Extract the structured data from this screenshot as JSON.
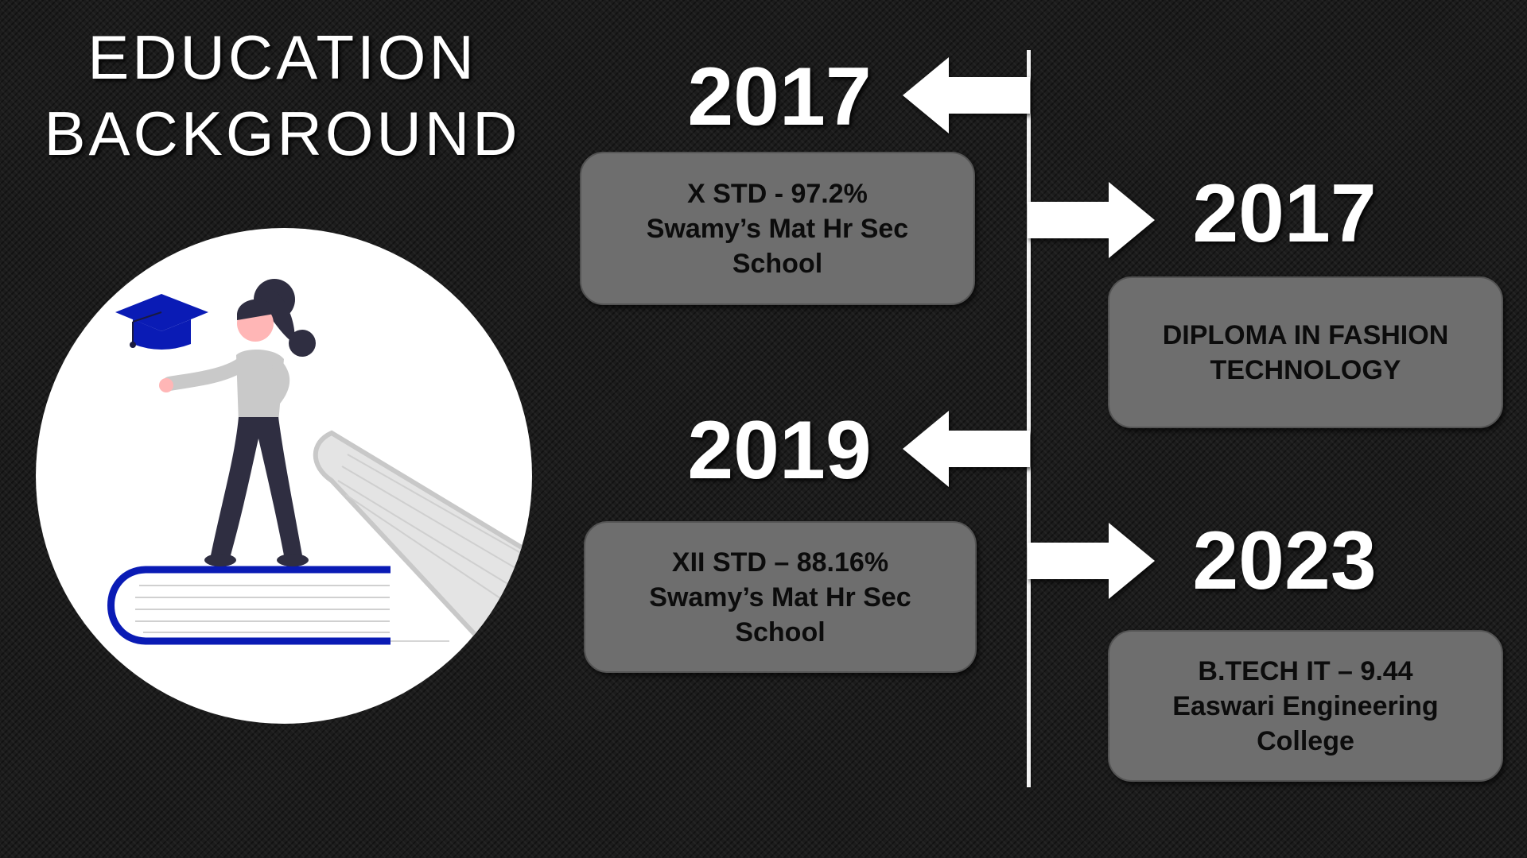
{
  "title": {
    "line1": "EDUCATION",
    "line2": "BACKGROUND"
  },
  "illustration": {
    "description_icons": [
      "graduation-cap-icon",
      "student-figure",
      "book-stack"
    ],
    "accent_color": "#0a1bb5"
  },
  "timeline": {
    "line_color": "#f4f4f4",
    "entries": [
      {
        "year": "2017",
        "side": "left",
        "lines": [
          "X STD - 97.2%",
          "Swamy’s Mat Hr Sec",
          "School"
        ]
      },
      {
        "year": "2017",
        "side": "right",
        "lines": [
          "DIPLOMA IN FASHION",
          "TECHNOLOGY"
        ]
      },
      {
        "year": "2019",
        "side": "left",
        "lines": [
          "XII STD – 88.16%",
          "Swamy’s Mat Hr Sec",
          "School"
        ]
      },
      {
        "year": "2023",
        "side": "right",
        "lines": [
          "B.TECH IT – 9.44",
          "Easwari Engineering",
          "College"
        ]
      }
    ]
  },
  "colors": {
    "background": "#1c1c1c",
    "card_fill": "#6e6e6e",
    "card_text": "#0c0c0c",
    "year_text": "#ffffff"
  }
}
